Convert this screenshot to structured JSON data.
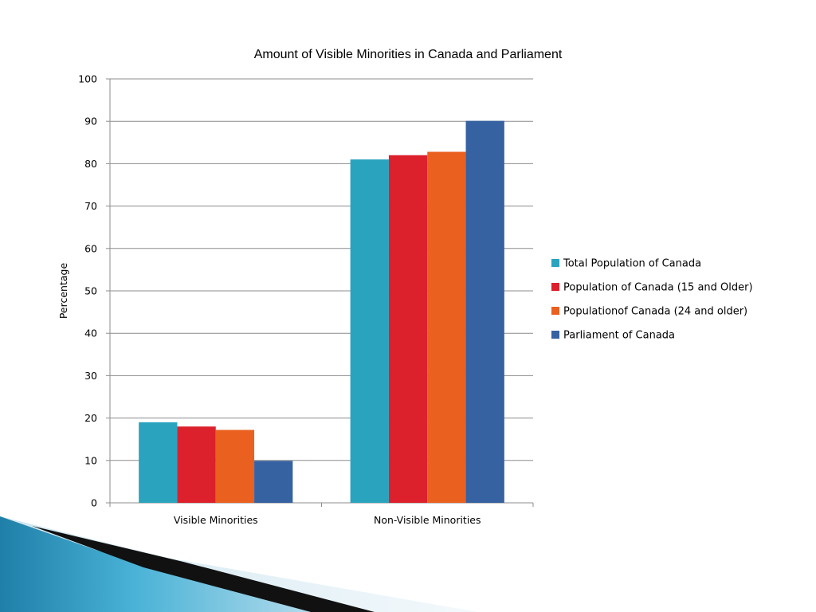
{
  "chart_data": {
    "type": "bar",
    "title": "Amount of Visible Minorities in Canada and Parliament",
    "xlabel": "",
    "ylabel": "Percentage",
    "categories": [
      "Visible Minorities",
      "Non-Visible Minorities"
    ],
    "series": [
      {
        "name": "Total Population of Canada",
        "color": "#2aa3bf",
        "values": [
          19,
          81
        ]
      },
      {
        "name": "Population of Canada (15 and Older)",
        "color": "#dc202c",
        "values": [
          18,
          82
        ]
      },
      {
        "name": "Populationof Canada (24 and older)",
        "color": "#ea601f",
        "values": [
          17.2,
          82.8
        ]
      },
      {
        "name": "Parliament of Canada",
        "color": "#3762a2",
        "values": [
          9.9,
          90.1
        ]
      }
    ],
    "ylim": [
      0,
      100
    ],
    "yticks": [
      0,
      10,
      20,
      30,
      40,
      50,
      60,
      70,
      80,
      90,
      100
    ],
    "grid": true,
    "legend_position": "right"
  }
}
